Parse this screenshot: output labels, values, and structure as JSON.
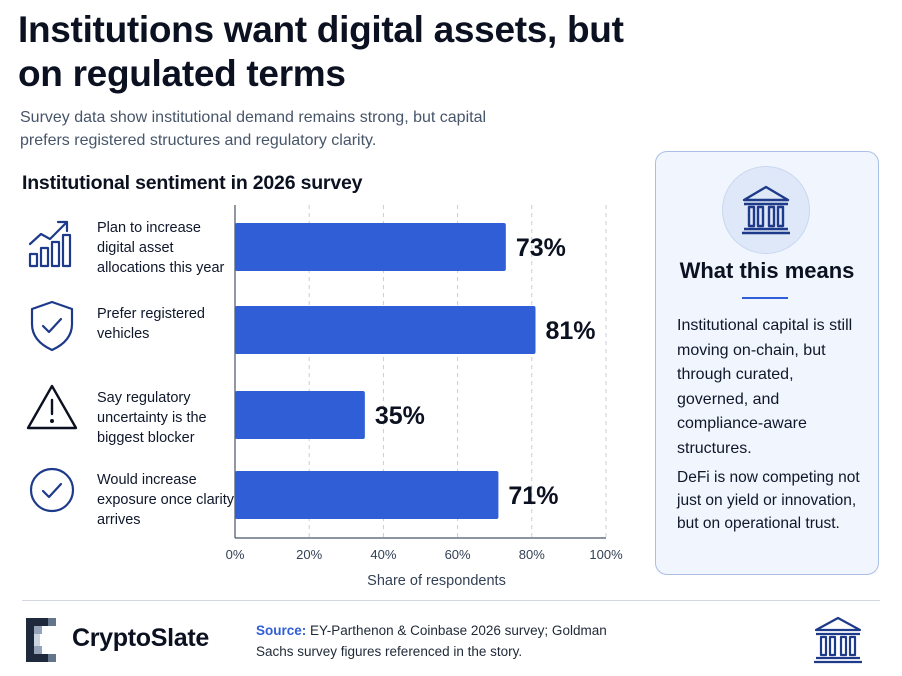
{
  "title": "Institutions want digital assets, but on regulated terms",
  "subtitle": "Survey data show institutional demand remains strong, but capital prefers registered structures and regulatory clarity.",
  "section_title": "Institutional sentiment in 2026 survey",
  "rows": [
    {
      "label": "Plan to increase digital asset allocations this year",
      "icon": "growth-chart-icon"
    },
    {
      "label": "Prefer registered vehicles",
      "icon": "shield-check-icon"
    },
    {
      "label": "Say regulatory uncertainty is the biggest blocker",
      "icon": "warning-triangle-icon"
    },
    {
      "label": "Would increase exposure once clarity arrives",
      "icon": "check-circle-icon"
    }
  ],
  "chart_data": {
    "type": "bar",
    "orientation": "horizontal",
    "categories": [
      "Plan to increase digital asset allocations this year",
      "Prefer registered vehicles",
      "Say regulatory uncertainty is the biggest blocker",
      "Would increase exposure once clarity arrives"
    ],
    "values": [
      73,
      81,
      35,
      71
    ],
    "value_labels": [
      "73%",
      "81%",
      "35%",
      "71%"
    ],
    "xlabel": "Share of respondents",
    "xlim": [
      0,
      100
    ],
    "xticks": [
      "0%",
      "20%",
      "40%",
      "60%",
      "80%",
      "100%"
    ],
    "grid": true,
    "bar_color": "#2f5ed6"
  },
  "panel": {
    "icon": "bank-building-icon",
    "heading": "What this means",
    "paragraph1": "Institutional capital is still moving on-chain, but through curated, governed, and compliance-aware structures.",
    "paragraph2": "DeFi is now competing not just on yield or innovation, but on operational trust."
  },
  "footer": {
    "brand": "CryptoSlate",
    "source_label": "Source:",
    "source_text": "EY-Parthenon & Coinbase 2026 survey; Goldman Sachs survey figures referenced in the story.",
    "icon": "bank-building-icon"
  },
  "colors": {
    "accent": "#2f5ed6",
    "title_text": "#0b1120",
    "panel_bg": "#f1f5fd",
    "panel_border": "#a9bfe6"
  }
}
